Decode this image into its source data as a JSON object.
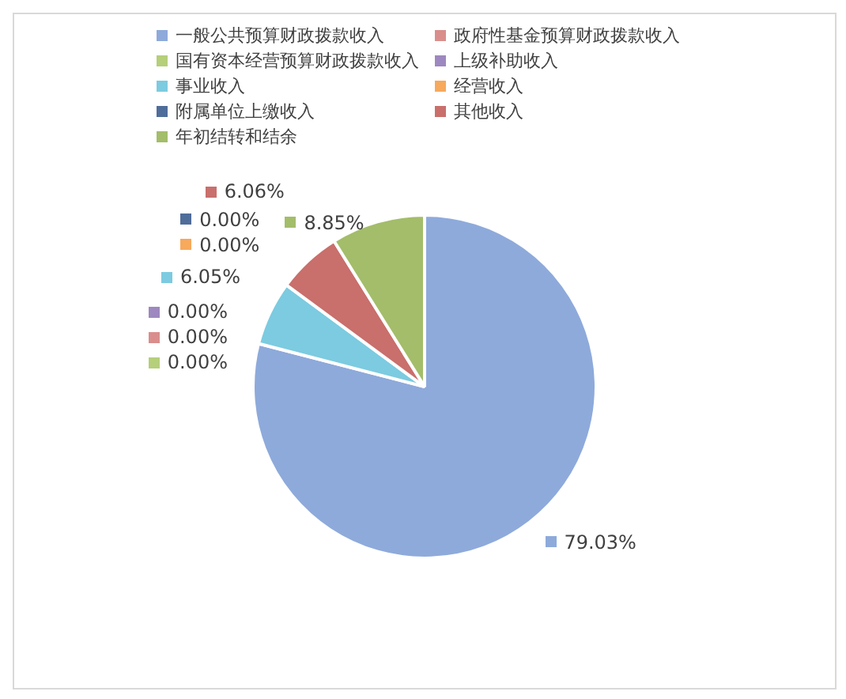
{
  "chart_data": {
    "type": "pie",
    "categories": [
      "一般公共预算财政拨款收入",
      "政府性基金预算财政拨款收入",
      "国有资本经营预算财政拨款收入",
      "上级补助收入",
      "事业收入",
      "经营收入",
      "附属单位上缴收入",
      "其他收入",
      "年初结转和结余"
    ],
    "values": [
      79.03,
      0,
      0,
      0,
      6.05,
      0,
      0,
      6.06,
      8.85
    ],
    "value_labels": [
      "79.03%",
      "0.00%",
      "0.00%",
      "0.00%",
      "6.05%",
      "0.00%",
      "0.00%",
      "6.06%",
      "8.85%"
    ],
    "colors": [
      "#8eaadb",
      "#d98e8c",
      "#b5cf7a",
      "#9d88bf",
      "#7ccbe0",
      "#f7a95c",
      "#4f6d9a",
      "#c96f6c",
      "#a3bd6a"
    ],
    "legend": "top"
  }
}
